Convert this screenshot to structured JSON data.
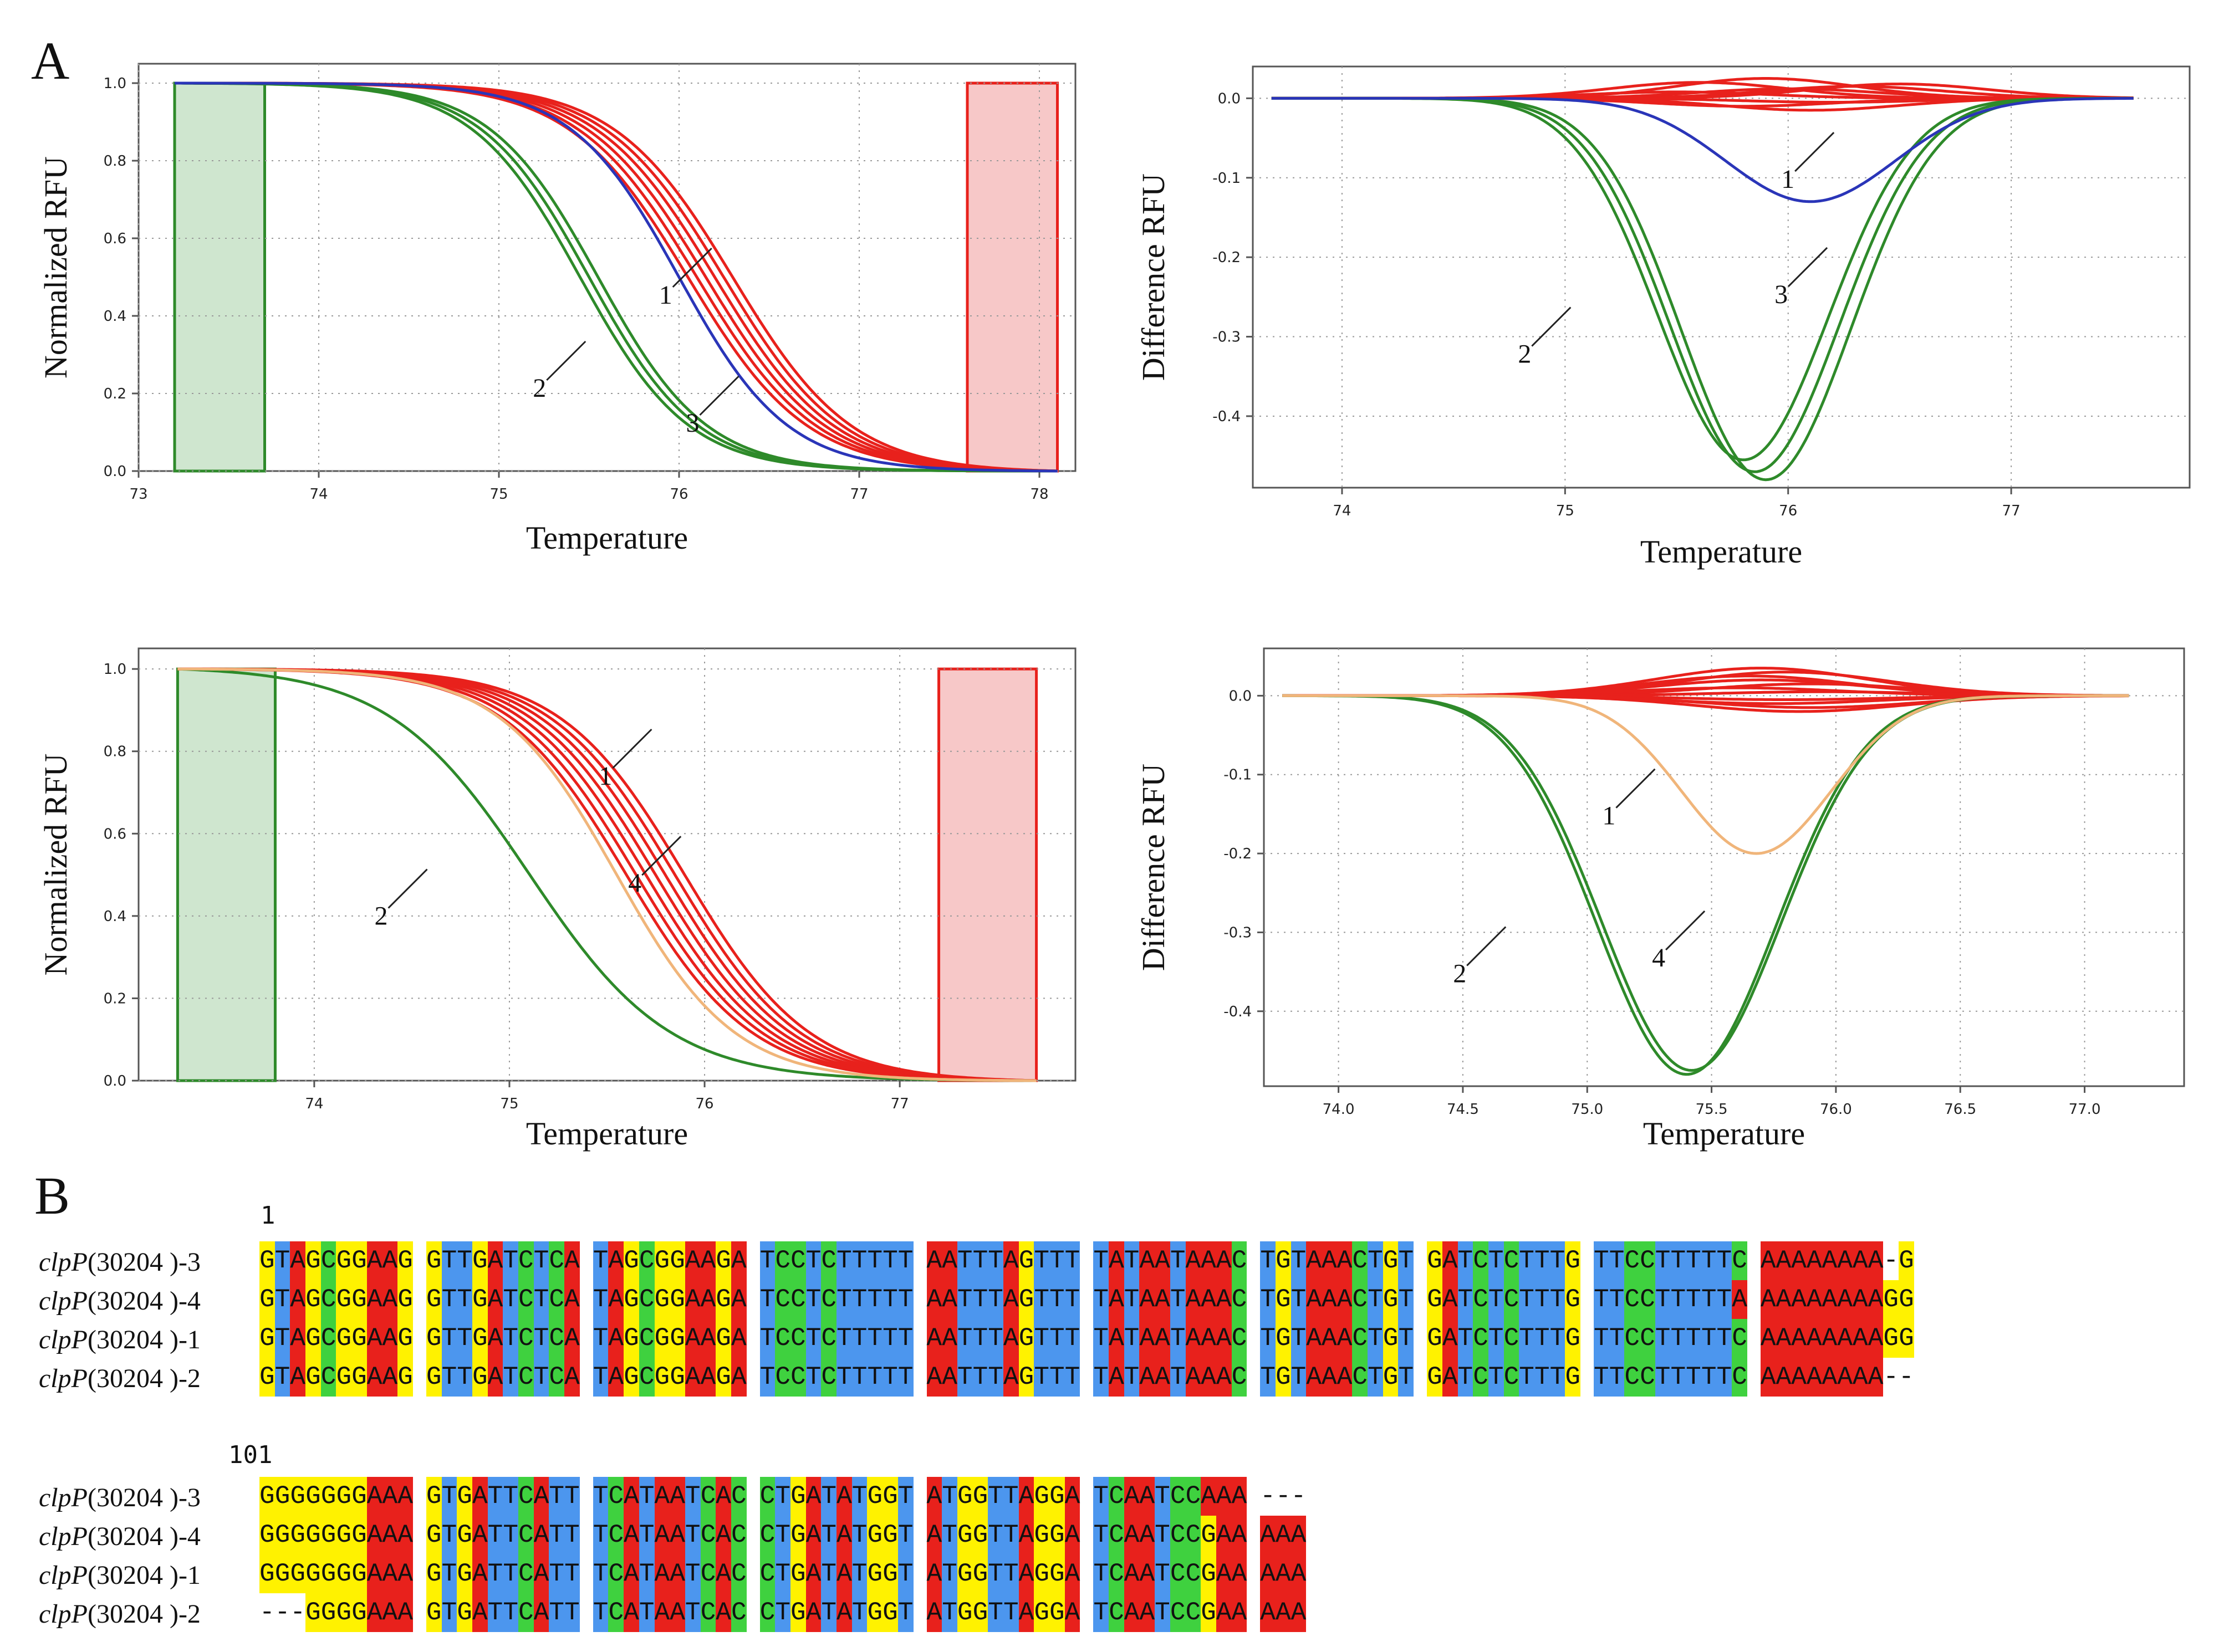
{
  "figure": {
    "panel_a_label": "A",
    "panel_b_label": "B"
  },
  "colors": {
    "red": "#e8211c",
    "green": "#2e8a2a",
    "blue": "#2a35b8",
    "orange": "#f0b57a",
    "green_band": "#cfe6cf",
    "red_band": "#f7c8c8",
    "A": "#e8211c",
    "C": "#3fd13f",
    "G": "#fff200",
    "T": "#4c96ee"
  },
  "chart_data": [
    {
      "id": "top-left",
      "type": "line",
      "xlabel": "Temperature",
      "ylabel": "Normalized RFU",
      "xlim": [
        73,
        78.2
      ],
      "ylim": [
        0,
        1.05
      ],
      "xticks": [
        "73",
        "74",
        "75",
        "76",
        "77",
        "78"
      ],
      "yticks": [
        "0.0",
        "0.2",
        "0.4",
        "0.6",
        "0.8",
        "1.0"
      ],
      "pre_melt_region": [
        73.2,
        73.7
      ],
      "post_melt_region": [
        77.6,
        78.1
      ],
      "series": [
        {
          "name": "1",
          "color": "red",
          "kind": "sigmoid",
          "tm": [
            76.05,
            76.1,
            76.15,
            76.2,
            76.25,
            76.3
          ],
          "width": 0.33
        },
        {
          "name": "2",
          "color": "green",
          "kind": "sigmoid",
          "tm": [
            75.45,
            75.5,
            75.55
          ],
          "width": 0.3
        },
        {
          "name": "3",
          "color": "blue",
          "kind": "sigmoid",
          "tm": [
            76.0
          ],
          "width": 0.3
        }
      ],
      "callouts": [
        {
          "text": "1",
          "x": 76.15,
          "y": 0.56
        },
        {
          "text": "2",
          "x": 75.45,
          "y": 0.32
        },
        {
          "text": "3",
          "x": 76.3,
          "y": 0.23
        }
      ]
    },
    {
      "id": "top-right",
      "type": "line",
      "xlabel": "Temperature",
      "ylabel": "Difference RFU",
      "xlim": [
        73.6,
        77.8
      ],
      "ylim": [
        -0.49,
        0.04
      ],
      "xticks": [
        "74",
        "75",
        "76",
        "77"
      ],
      "yticks": [
        "0.0",
        "-0.1",
        "-0.2",
        "-0.3",
        "-0.4"
      ],
      "series": [
        {
          "name": "1",
          "color": "red",
          "kind": "diff",
          "peaks": [
            [
              76.0,
              0.012
            ],
            [
              75.6,
              0.02
            ],
            [
              76.3,
              0.015
            ],
            [
              75.8,
              -0.01
            ],
            [
              76.1,
              -0.015
            ],
            [
              75.5,
              0.008
            ],
            [
              76.5,
              0.018
            ],
            [
              75.9,
              0.025
            ],
            [
              76.2,
              -0.005
            ]
          ],
          "sd": 0.4
        },
        {
          "name": "2",
          "color": "green",
          "kind": "diff",
          "peaks": [
            [
              75.8,
              -0.455
            ],
            [
              75.85,
              -0.47
            ],
            [
              75.9,
              -0.48
            ]
          ],
          "sd": 0.38
        },
        {
          "name": "3",
          "color": "blue",
          "kind": "diff",
          "peaks": [
            [
              76.1,
              -0.13
            ]
          ],
          "sd": 0.38
        }
      ],
      "callouts": [
        {
          "text": "1",
          "x": 76.18,
          "y": -0.05
        },
        {
          "text": "2",
          "x": 75.0,
          "y": -0.27
        },
        {
          "text": "3",
          "x": 76.15,
          "y": -0.195
        }
      ]
    },
    {
      "id": "bottom-left",
      "type": "line",
      "xlabel": "Temperature",
      "ylabel": "Normalized RFU",
      "xlim": [
        73.1,
        77.9
      ],
      "ylim": [
        0,
        1.05
      ],
      "xticks": [
        "74",
        "75",
        "76",
        "77"
      ],
      "yticks": [
        "0.0",
        "0.2",
        "0.4",
        "0.6",
        "0.8",
        "1.0"
      ],
      "pre_melt_region": [
        73.3,
        73.8
      ],
      "post_melt_region": [
        77.2,
        77.7
      ],
      "series": [
        {
          "name": "1",
          "color": "red",
          "kind": "sigmoid",
          "tm": [
            75.6,
            75.65,
            75.7,
            75.75,
            75.8,
            75.85,
            75.9
          ],
          "width": 0.32
        },
        {
          "name": "2",
          "color": "green",
          "kind": "sigmoid",
          "tm": [
            75.1
          ],
          "width": 0.36
        },
        {
          "name": "4",
          "color": "orange",
          "kind": "sigmoid",
          "tm": [
            75.55
          ],
          "width": 0.3
        }
      ],
      "callouts": [
        {
          "text": "1",
          "x": 75.7,
          "y": 0.84
        },
        {
          "text": "2",
          "x": 74.55,
          "y": 0.5
        },
        {
          "text": "4",
          "x": 75.85,
          "y": 0.58
        }
      ]
    },
    {
      "id": "bottom-right",
      "type": "line",
      "xlabel": "Temperature",
      "ylabel": "Difference RFU",
      "xlim": [
        73.7,
        77.4
      ],
      "ylim": [
        -0.495,
        0.06
      ],
      "xticks": [
        "74.0",
        "74.5",
        "75.0",
        "75.5",
        "76.0",
        "76.5",
        "77.0"
      ],
      "yticks": [
        "0.0",
        "-0.1",
        "-0.2",
        "-0.3",
        "-0.4"
      ],
      "series": [
        {
          "name": "1",
          "color": "red",
          "kind": "diff",
          "peaks": [
            [
              75.8,
              0.03
            ],
            [
              75.7,
              0.02
            ],
            [
              75.9,
              0.015
            ],
            [
              75.6,
              0.01
            ],
            [
              75.75,
              -0.01
            ],
            [
              75.85,
              -0.02
            ],
            [
              75.65,
              0.025
            ],
            [
              75.95,
              0.005
            ],
            [
              75.8,
              -0.005
            ],
            [
              75.7,
              0.035
            ],
            [
              75.9,
              -0.015
            ]
          ],
          "sd": 0.42
        },
        {
          "name": "2",
          "color": "green",
          "kind": "diff",
          "peaks": [
            [
              75.4,
              -0.48
            ],
            [
              75.42,
              -0.475
            ]
          ],
          "sd": 0.36
        },
        {
          "name": "4",
          "color": "orange",
          "kind": "diff",
          "peaks": [
            [
              75.68,
              -0.2
            ]
          ],
          "sd": 0.3
        }
      ],
      "callouts": [
        {
          "text": "1",
          "x": 75.25,
          "y": -0.1
        },
        {
          "text": "2",
          "x": 74.65,
          "y": -0.3
        },
        {
          "text": "4",
          "x": 75.45,
          "y": -0.28
        }
      ]
    }
  ],
  "alignment": {
    "block1_start": "1",
    "block2_start": "101",
    "labels": [
      "clpP(30204 )-3",
      "clpP(30204 )-4",
      "clpP(30204 )-1",
      "clpP(30204 )-2"
    ],
    "label_parts": [
      {
        "gene": "clpP",
        "rest": "(30204 )-3"
      },
      {
        "gene": "clpP",
        "rest": "(30204 )-4"
      },
      {
        "gene": "clpP",
        "rest": "(30204 )-1"
      },
      {
        "gene": "clpP",
        "rest": "(30204 )-2"
      }
    ],
    "block1": [
      "GTAGCGGAAG GTTGATCTCA TAGCGGAAGA TCCTCTTTTT AATTTAGTTT TATAATAAAC TGTAAACTGT GATCTCTTTG TTCCTTTTTC AAAAAAAA-G",
      "GTAGCGGAAG GTTGATCTCA TAGCGGAAGA TCCTCTTTTT AATTTAGTTT TATAATAAAC TGTAAACTGT GATCTCTTTG TTCCTTTTTA AAAAAAAAGG",
      "GTAGCGGAAG GTTGATCTCA TAGCGGAAGA TCCTCTTTTT AATTTAGTTT TATAATAAAC TGTAAACTGT GATCTCTTTG TTCCTTTTTC AAAAAAAAGG",
      "GTAGCGGAAG GTTGATCTCA TAGCGGAAGA TCCTCTTTTT AATTTAGTTT TATAATAAAC TGTAAACTGT GATCTCTTTG TTCCTTTTTC AAAAAAAA--"
    ],
    "block2": [
      "GGGGGGGAAA GTGATTCATT TCATAATCAC CTGATATGGT ATGGTTAGGA TCAATCCAAA ---",
      "GGGGGGGAAA GTGATTCATT TCATAATCAC CTGATATGGT ATGGTTAGGA TCAATCCGAA AAA",
      "GGGGGGGAAA GTGATTCATT TCATAATCAC CTGATATGGT ATGGTTAGGA TCAATCCGAA AAA",
      "---GGGGAAA GTGATTCATT TCATAATCAC CTGATATGGT ATGGTTAGGA TCAATCCGAA AAA"
    ]
  }
}
